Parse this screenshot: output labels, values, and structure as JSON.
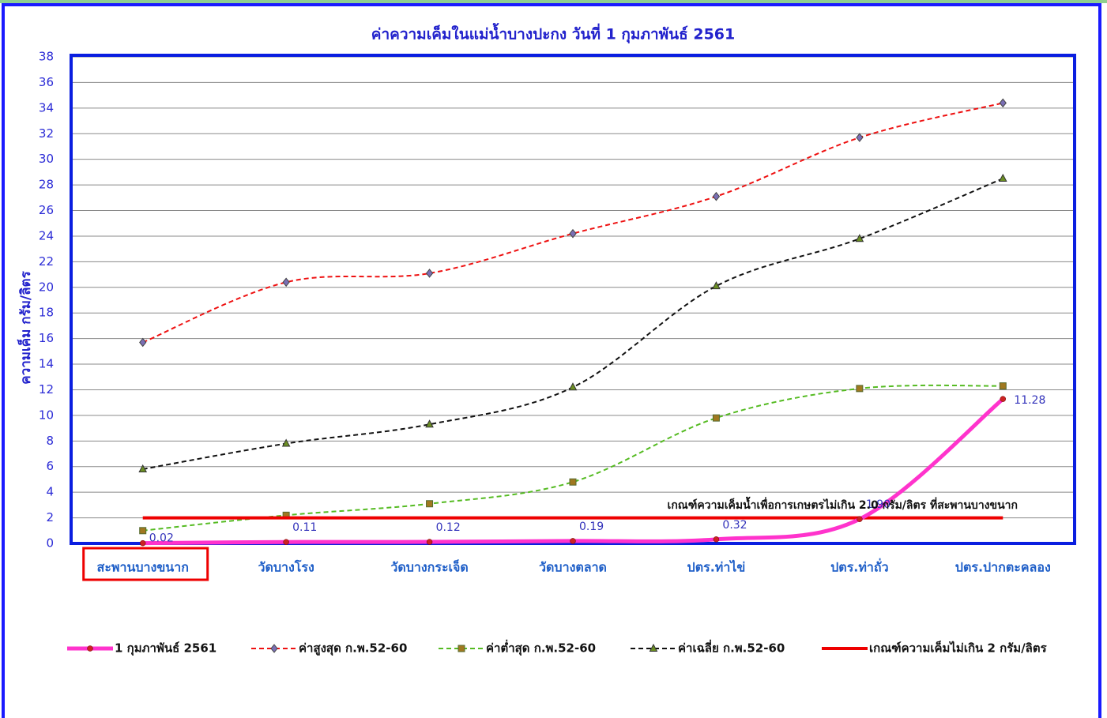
{
  "chart_data": {
    "type": "line",
    "title": "ค่าความเค็มในแม่น้ำบางปะกง วันที่ 1 กุมภาพันธ์ 2561",
    "y_label": "ความเค็ม กรัม/ลิตร",
    "annotation": "เกณฑ์ความเค็มน้ำเพื่อการเกษตรไม่เกิน 2.0 กรัม/ลิตร ที่สะพานบางขนาก",
    "categories": [
      "สะพานบางขนาก",
      "วัดบางโรง",
      "วัดบางกระเจ็ด",
      "วัดบางตลาด",
      "ปตร.ท่าไข่",
      "ปตร.ท่าถั่ว",
      "ปตร.ปากตะคลอง"
    ],
    "ylim": [
      0,
      38
    ],
    "yticks": [
      0,
      2,
      4,
      6,
      8,
      10,
      12,
      14,
      16,
      18,
      20,
      22,
      24,
      26,
      28,
      30,
      32,
      34,
      36,
      38
    ],
    "grid": true,
    "series": [
      {
        "name": "1 กุมภาพันธ์ 2561",
        "color": "#ff33cc",
        "style": "solid",
        "width": 5,
        "marker": "circle",
        "smooth": true,
        "values": [
          0.02,
          0.11,
          0.12,
          0.19,
          0.32,
          1.9,
          11.28
        ],
        "value_labels": [
          "0.02",
          "0.11",
          "0.12",
          "0.19",
          "0.32",
          "1.90",
          "11.28"
        ]
      },
      {
        "name": "ค่าสูงสุด ก.พ.52-60",
        "color": "#ee1111",
        "style": "dashed",
        "width": 2,
        "marker": "diamond",
        "smooth": true,
        "values": [
          15.7,
          20.4,
          21.1,
          24.2,
          27.1,
          31.7,
          34.4
        ]
      },
      {
        "name": "ค่าต่ำสุด ก.พ.52-60",
        "color": "#55bb22",
        "style": "dashed",
        "width": 2,
        "marker": "square",
        "smooth": true,
        "values": [
          1.0,
          2.2,
          3.1,
          4.8,
          9.8,
          12.1,
          12.3
        ]
      },
      {
        "name": "ค่าเฉลี่ย ก.พ.52-60",
        "color": "#111111",
        "style": "dashed",
        "width": 2,
        "marker": "triangle",
        "smooth": true,
        "values": [
          5.8,
          7.8,
          9.3,
          12.2,
          20.1,
          23.8,
          28.5
        ]
      },
      {
        "name": "เกณฑ์ความเค็มไม่เกิน 2 กรัม/ลิตร",
        "color": "#ee0000",
        "style": "solid",
        "width": 4,
        "marker": "none",
        "smooth": false,
        "values": [
          2,
          2,
          2,
          2,
          2,
          2,
          2
        ]
      }
    ]
  }
}
